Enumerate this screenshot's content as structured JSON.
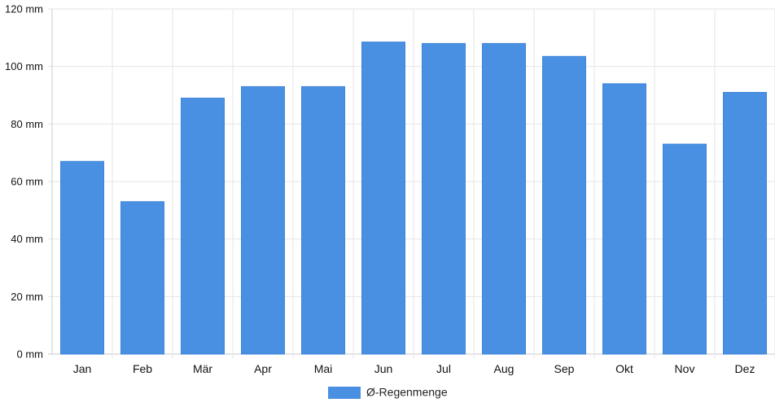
{
  "chart_data": {
    "type": "bar",
    "categories": [
      "Jan",
      "Feb",
      "Mär",
      "Apr",
      "Mai",
      "Jun",
      "Jul",
      "Aug",
      "Sep",
      "Okt",
      "Nov",
      "Dez"
    ],
    "series": [
      {
        "name": "Ø-Regenmenge",
        "values": [
          67,
          53,
          89,
          93,
          93,
          108.5,
          108,
          108,
          103.5,
          94,
          73,
          91
        ],
        "color": "#4a90e2"
      }
    ],
    "ylim": [
      0,
      120
    ],
    "yticks": [
      0,
      20,
      40,
      60,
      80,
      100,
      120
    ],
    "y_tick_labels": [
      "0 mm",
      "20 mm",
      "40 mm",
      "60 mm",
      "80 mm",
      "100 mm",
      "120 mm"
    ],
    "grid": true,
    "legend_position": "bottom-center",
    "xlabel": "",
    "ylabel": "",
    "title": ""
  }
}
